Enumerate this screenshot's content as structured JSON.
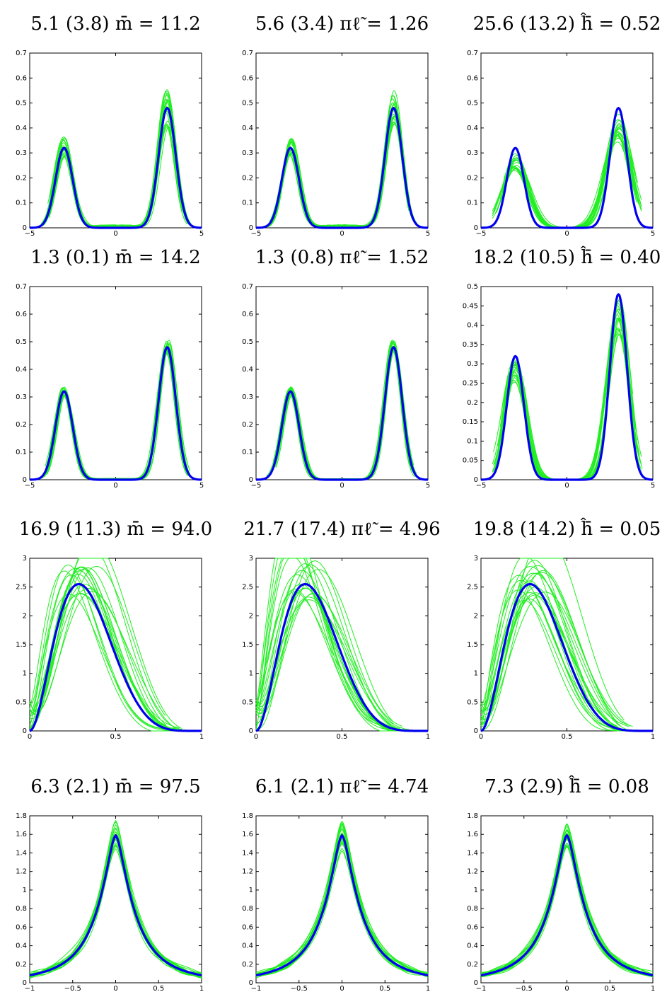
{
  "figure": {
    "colors": {
      "true_density": "#0000ee",
      "estimates": "#22ee22"
    },
    "panels": [
      {
        "title_text": "5.1 (3.8) m̄̄ = 11.2",
        "left": "5.1",
        "paren": "(3.8)",
        "symbol": "m",
        "rhs": "= 11.2"
      },
      {
        "title_text": "5.6 (3.4) πℓ̃ = 1.26",
        "left": "5.6",
        "paren": "(3.4)",
        "symbol": "πl",
        "rhs": "= 1.26"
      },
      {
        "title_text": "25.6 (13.2) ĥ̄ = 0.52",
        "left": "25.6",
        "paren": "(13.2)",
        "symbol": "h",
        "rhs": "= 0.52"
      },
      {
        "title_text": "1.3 (0.1) m̄̄ = 14.2",
        "left": "1.3",
        "paren": "(0.1)",
        "symbol": "m",
        "rhs": "= 14.2"
      },
      {
        "title_text": "1.3 (0.8) πℓ̃ = 1.52",
        "left": "1.3",
        "paren": "(0.8)",
        "symbol": "πl",
        "rhs": "= 1.52"
      },
      {
        "title_text": "18.2 (10.5) ĥ̄ = 0.40",
        "left": "18.2",
        "paren": "(10.5)",
        "symbol": "h",
        "rhs": "= 0.40"
      },
      {
        "title_text": "16.9 (11.3) m̄̄ = 94.0",
        "left": "16.9",
        "paren": "(11.3)",
        "symbol": "m",
        "rhs": "= 94.0"
      },
      {
        "title_text": "21.7 (17.4) πℓ̃ = 4.96",
        "left": "21.7",
        "paren": "(17.4)",
        "symbol": "πl",
        "rhs": "= 4.96"
      },
      {
        "title_text": "19.8 (14.2) ĥ̄ = 0.05",
        "left": "19.8",
        "paren": "(14.2)",
        "symbol": "h",
        "rhs": "= 0.05"
      },
      {
        "title_text": "6.3 (2.1) m̄̄ = 97.5",
        "left": "6.3",
        "paren": "(2.1)",
        "symbol": "m",
        "rhs": "= 97.5"
      },
      {
        "title_text": "6.1 (2.1) πℓ̃ = 4.74",
        "left": "6.1",
        "paren": "(2.1)",
        "symbol": "πl",
        "rhs": "= 4.74"
      },
      {
        "title_text": "7.3 (2.9) ĥ̄ = 0.08",
        "left": "7.3",
        "paren": "(2.9)",
        "symbol": "h",
        "rhs": "= 0.08"
      }
    ]
  },
  "chart_data": [
    {
      "type": "line",
      "density": "bimodal",
      "title": "5.1 (3.8) m̄̄ = 11.2",
      "xlim": [
        -5,
        5
      ],
      "ylim": [
        0,
        0.7
      ],
      "xticks": [
        "−5",
        "0",
        "5"
      ],
      "yticks": [
        "0",
        "0.1",
        "0.2",
        "0.3",
        "0.4",
        "0.5",
        "0.6",
        "0.7"
      ],
      "true_density": {
        "peaks": [
          {
            "x": -3,
            "y": 0.32
          },
          {
            "x": 3,
            "y": 0.48
          }
        ]
      },
      "estimate_count": 20,
      "estimate_spread": 0.14,
      "estimate_ripple": 0.012
    },
    {
      "type": "line",
      "density": "bimodal",
      "title": "5.6 (3.4) πℓ̃ = 1.26",
      "xlim": [
        -5,
        5
      ],
      "ylim": [
        0,
        0.7
      ],
      "xticks": [
        "−5",
        "0",
        "5"
      ],
      "yticks": [
        "0",
        "0.1",
        "0.2",
        "0.3",
        "0.4",
        "0.5",
        "0.6",
        "0.7"
      ],
      "true_density": {
        "peaks": [
          {
            "x": -3,
            "y": 0.32
          },
          {
            "x": 3,
            "y": 0.48
          }
        ]
      },
      "estimate_count": 20,
      "estimate_spread": 0.12,
      "estimate_ripple": 0.012
    },
    {
      "type": "line",
      "density": "bimodal",
      "title": "25.6 (13.2) ĥ̄ = 0.52",
      "xlim": [
        -5,
        5
      ],
      "ylim": [
        0,
        0.7
      ],
      "xticks": [
        "−5",
        "0",
        "5"
      ],
      "yticks": [
        "0",
        "0.1",
        "0.2",
        "0.3",
        "0.4",
        "0.5",
        "0.6",
        "0.7"
      ],
      "true_density": {
        "peaks": [
          {
            "x": -3,
            "y": 0.32
          },
          {
            "x": 3,
            "y": 0.48
          }
        ]
      },
      "estimate_count": 20,
      "estimate_spread": 0.12,
      "estimate_widen": 0.55,
      "estimate_ripple": 0
    },
    {
      "type": "line",
      "density": "bimodal",
      "title": "1.3 (0.1) m̄̄ = 14.2",
      "xlim": [
        -5,
        5
      ],
      "ylim": [
        0,
        0.7
      ],
      "xticks": [
        "−5",
        "0",
        "5"
      ],
      "yticks": [
        "0",
        "0.1",
        "0.2",
        "0.3",
        "0.4",
        "0.5",
        "0.6",
        "0.7"
      ],
      "true_density": {
        "peaks": [
          {
            "x": -3,
            "y": 0.32
          },
          {
            "x": 3,
            "y": 0.48
          }
        ]
      },
      "estimate_count": 20,
      "estimate_spread": 0.05,
      "estimate_ripple": 0.005
    },
    {
      "type": "line",
      "density": "bimodal",
      "title": "1.3 (0.8) πℓ̃ = 1.52",
      "xlim": [
        -5,
        5
      ],
      "ylim": [
        0,
        0.7
      ],
      "xticks": [
        "−5",
        "0",
        "5"
      ],
      "yticks": [
        "0",
        "0.1",
        "0.2",
        "0.3",
        "0.4",
        "0.5",
        "0.6",
        "0.7"
      ],
      "true_density": {
        "peaks": [
          {
            "x": -3,
            "y": 0.32
          },
          {
            "x": 3,
            "y": 0.48
          }
        ]
      },
      "estimate_count": 20,
      "estimate_spread": 0.05,
      "estimate_ripple": 0.004
    },
    {
      "type": "line",
      "density": "bimodal",
      "title": "18.2 (10.5) ĥ̄ = 0.40",
      "xlim": [
        -5,
        5
      ],
      "ylim": [
        0,
        0.5
      ],
      "xticks": [
        "−5",
        "0",
        "5"
      ],
      "yticks": [
        "0",
        "0.05",
        "0.1",
        "0.15",
        "0.2",
        "0.25",
        "0.3",
        "0.35",
        "0.4",
        "0.45",
        "0.5"
      ],
      "true_density": {
        "peaks": [
          {
            "x": -3,
            "y": 0.32
          },
          {
            "x": 3,
            "y": 0.48
          }
        ]
      },
      "estimate_count": 20,
      "estimate_spread": 0.1,
      "estimate_widen": 0.3,
      "estimate_ripple": 0
    },
    {
      "type": "line",
      "density": "beta",
      "title": "16.9 (11.3) m̄̄ = 94.0",
      "xlim": [
        0,
        1
      ],
      "ylim": [
        0,
        3
      ],
      "xticks": [
        "0",
        "0.5",
        "1"
      ],
      "yticks": [
        "0",
        "0.5",
        "1",
        "1.5",
        "2",
        "2.5",
        "3"
      ],
      "true_density": {
        "mode": {
          "x": 0.29,
          "y": 2.55
        }
      },
      "estimate_count": 20,
      "estimate_spread": 0.12
    },
    {
      "type": "line",
      "density": "beta",
      "title": "21.7 (17.4) πℓ̃ = 4.96",
      "xlim": [
        0,
        1
      ],
      "ylim": [
        0,
        3
      ],
      "xticks": [
        "0",
        "0.5",
        "1"
      ],
      "yticks": [
        "0",
        "0.5",
        "1",
        "1.5",
        "2",
        "2.5",
        "3"
      ],
      "true_density": {
        "mode": {
          "x": 0.29,
          "y": 2.55
        }
      },
      "estimate_count": 20,
      "estimate_spread": 0.16
    },
    {
      "type": "line",
      "density": "beta",
      "title": "19.8 (14.2) ĥ̄ = 0.05",
      "xlim": [
        0,
        1
      ],
      "ylim": [
        0,
        3
      ],
      "xticks": [
        "0",
        "0.5",
        "1"
      ],
      "yticks": [
        "0",
        "0.5",
        "1",
        "1.5",
        "2",
        "2.5",
        "3"
      ],
      "true_density": {
        "mode": {
          "x": 0.29,
          "y": 2.55
        }
      },
      "estimate_count": 20,
      "estimate_spread": 0.15
    },
    {
      "type": "line",
      "density": "peaked",
      "title": "6.3 (2.1) m̄̄ = 97.5",
      "xlim": [
        -1,
        1
      ],
      "ylim": [
        0,
        1.8
      ],
      "xticks": [
        "−1",
        "−0.5",
        "0",
        "0.5",
        "1"
      ],
      "yticks": [
        "0",
        "0.2",
        "0.4",
        "0.6",
        "0.8",
        "1",
        "1.2",
        "1.4",
        "1.6",
        "1.8"
      ],
      "true_density": {
        "mode": {
          "x": 0,
          "y": 1.59
        }
      },
      "estimate_count": 20,
      "estimate_spread": 0.1
    },
    {
      "type": "line",
      "density": "peaked",
      "title": "6.1 (2.1) πℓ̃ = 4.74",
      "xlim": [
        -1,
        1
      ],
      "ylim": [
        0,
        1.8
      ],
      "xticks": [
        "−1",
        "−0.5",
        "0",
        "0.5",
        "1"
      ],
      "yticks": [
        "0",
        "0.2",
        "0.4",
        "0.6",
        "0.8",
        "1",
        "1.2",
        "1.4",
        "1.6",
        "1.8"
      ],
      "true_density": {
        "mode": {
          "x": 0,
          "y": 1.59
        }
      },
      "estimate_count": 20,
      "estimate_spread": 0.1
    },
    {
      "type": "line",
      "density": "peaked",
      "title": "7.3 (2.9) ĥ̄ = 0.08",
      "xlim": [
        -1,
        1
      ],
      "ylim": [
        0,
        1.8
      ],
      "xticks": [
        "−1",
        "−0.5",
        "0",
        "0.5",
        "1"
      ],
      "yticks": [
        "0",
        "0.2",
        "0.4",
        "0.6",
        "0.8",
        "1",
        "1.2",
        "1.4",
        "1.6",
        "1.8"
      ],
      "true_density": {
        "mode": {
          "x": 0,
          "y": 1.59
        }
      },
      "estimate_count": 20,
      "estimate_spread": 0.08
    }
  ]
}
